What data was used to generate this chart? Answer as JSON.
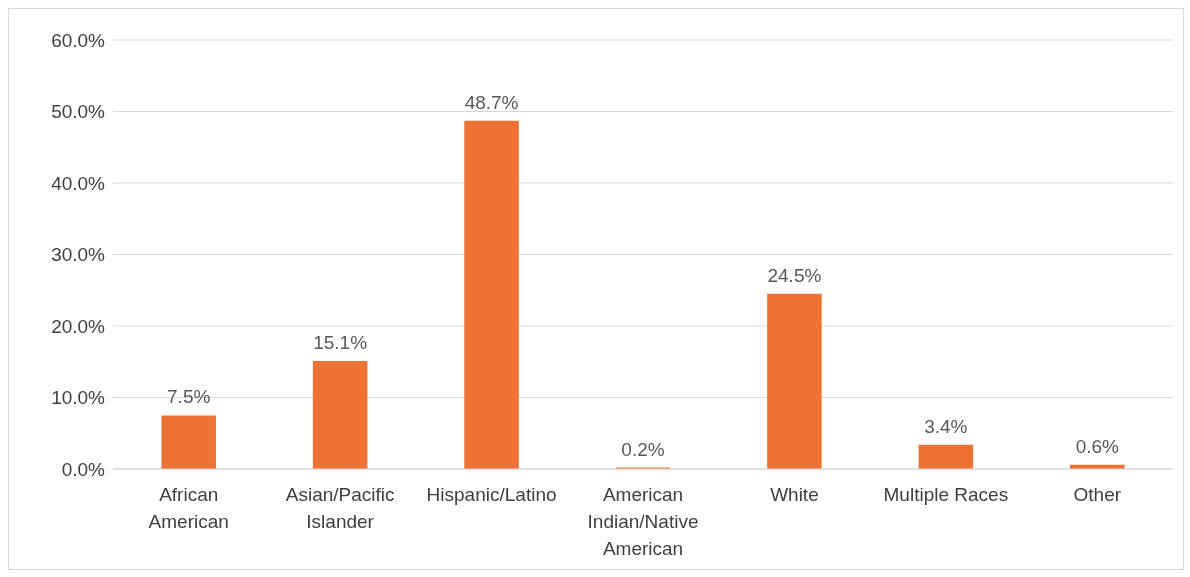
{
  "chart_data": {
    "type": "bar",
    "categories": [
      "African American",
      "Asian/Pacific Islander",
      "Hispanic/Latino",
      "American Indian/Native American",
      "White",
      "Multiple Races",
      "Other"
    ],
    "values": [
      7.5,
      15.1,
      48.7,
      0.2,
      24.5,
      3.4,
      0.6
    ],
    "value_labels": [
      "7.5%",
      "15.1%",
      "48.7%",
      "0.2%",
      "24.5%",
      "3.4%",
      "0.6%"
    ],
    "color": "#ed7233",
    "ylim": [
      0,
      60
    ],
    "yticks": [
      {
        "value": 0,
        "label": "0.0%"
      },
      {
        "value": 10,
        "label": "10.0%"
      },
      {
        "value": 20,
        "label": "20.0%"
      },
      {
        "value": 30,
        "label": "30.0%"
      },
      {
        "value": 40,
        "label": "40.0%"
      },
      {
        "value": 50,
        "label": "50.0%"
      },
      {
        "value": 60,
        "label": "60.0%"
      }
    ],
    "grid": "y"
  }
}
